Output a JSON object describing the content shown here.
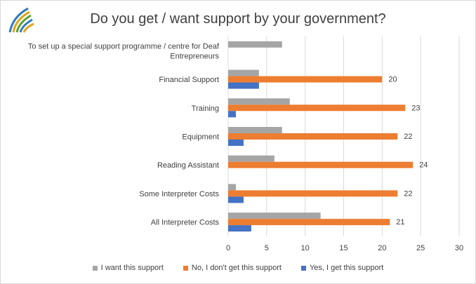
{
  "chart_data": {
    "type": "bar",
    "orientation": "horizontal",
    "title": "Do you get / want support by your government?",
    "categories": [
      "To set up a special support programme / centre for Deaf Entrepreneurs",
      "Financial Support",
      "Training",
      "Equipment",
      "Reading Assistant",
      "Some Interpreter Costs",
      "All Interpreter Costs"
    ],
    "category_lines": [
      [
        "To set up a special support programme / centre for Deaf",
        "Entrepreneurs"
      ],
      [
        "Financial Support"
      ],
      [
        "Training"
      ],
      [
        "Equipment"
      ],
      [
        "Reading Assistant"
      ],
      [
        "Some Interpreter Costs"
      ],
      [
        "All Interpreter Costs"
      ]
    ],
    "series": [
      {
        "name": "I want this support",
        "color": "#a5a5a5",
        "values": [
          7,
          4,
          8,
          7,
          6,
          1,
          12
        ],
        "labels": [
          "",
          "",
          "",
          "",
          "",
          "",
          ""
        ]
      },
      {
        "name": "No, I don't get this support",
        "color": "#ed7d31",
        "values": [
          null,
          20,
          23,
          22,
          24,
          22,
          21
        ],
        "labels": [
          "",
          "20",
          "23",
          "22",
          "24",
          "22",
          "21"
        ]
      },
      {
        "name": "Yes, I get this support",
        "color": "#4472c4",
        "values": [
          null,
          4,
          1,
          2,
          null,
          2,
          3
        ],
        "labels": [
          "",
          "",
          "",
          "",
          "",
          "",
          ""
        ]
      }
    ],
    "xlim": [
      0,
      30
    ],
    "xticks": [
      "0",
      "5",
      "10",
      "15",
      "20",
      "25",
      "30"
    ],
    "grid": true,
    "legend_position": "bottom"
  }
}
